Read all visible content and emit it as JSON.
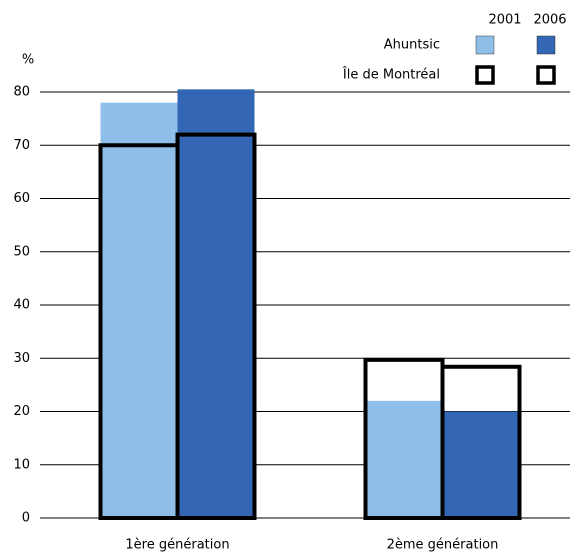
{
  "chart_data": {
    "type": "bar",
    "ylabel": "%",
    "categories": [
      "1ère génération",
      "2ème génération"
    ],
    "years": [
      "2001",
      "2006"
    ],
    "series": [
      {
        "name": "Ahuntsic",
        "style": "filled",
        "colors": [
          "#8fbfe8",
          "#3366b5"
        ],
        "values": [
          [
            78,
            22
          ],
          [
            80.5,
            20
          ]
        ]
      },
      {
        "name": "Île de Montréal",
        "style": "outline",
        "colors": [
          "#000000",
          "#000000"
        ],
        "values": [
          [
            70,
            29.7
          ],
          [
            72,
            28.4
          ]
        ]
      }
    ],
    "ylim": [
      0,
      80
    ],
    "yticks": [
      0,
      10,
      20,
      30,
      40,
      50,
      60,
      70,
      80
    ],
    "grid": true
  }
}
